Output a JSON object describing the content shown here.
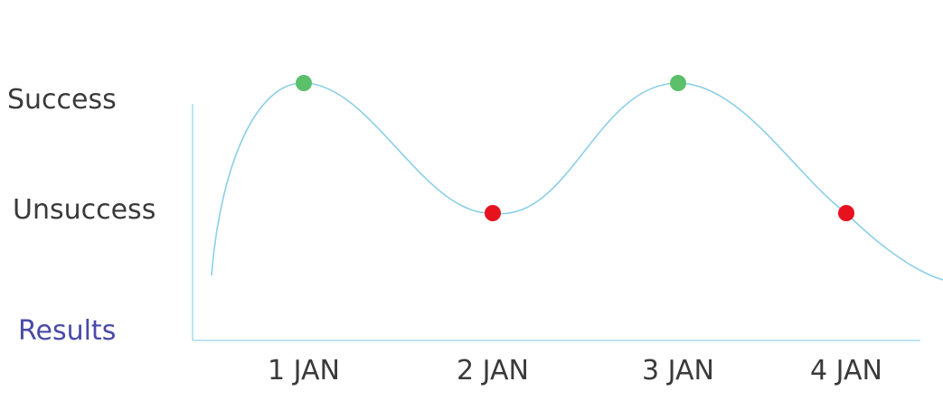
{
  "chart_data": {
    "type": "line",
    "title": "",
    "xlabel": "",
    "ylabel": "Results",
    "categories": [
      "1 JAN",
      "2 JAN",
      "3 JAN",
      "4 JAN"
    ],
    "y_categories": [
      "Unsuccess",
      "Success"
    ],
    "series": [
      {
        "values": [
          "Success",
          "Unsuccess",
          "Success",
          "Unsuccess"
        ]
      }
    ],
    "grid": false,
    "legend": "none",
    "colors": {
      "line": "#8ccfe6",
      "axis": "#a8dcec",
      "Success": "#5cbf6a",
      "Unsuccess": "#e8121f",
      "tick_text": "#3a3a3a",
      "ylabel_text": "#4a4aa8"
    }
  }
}
